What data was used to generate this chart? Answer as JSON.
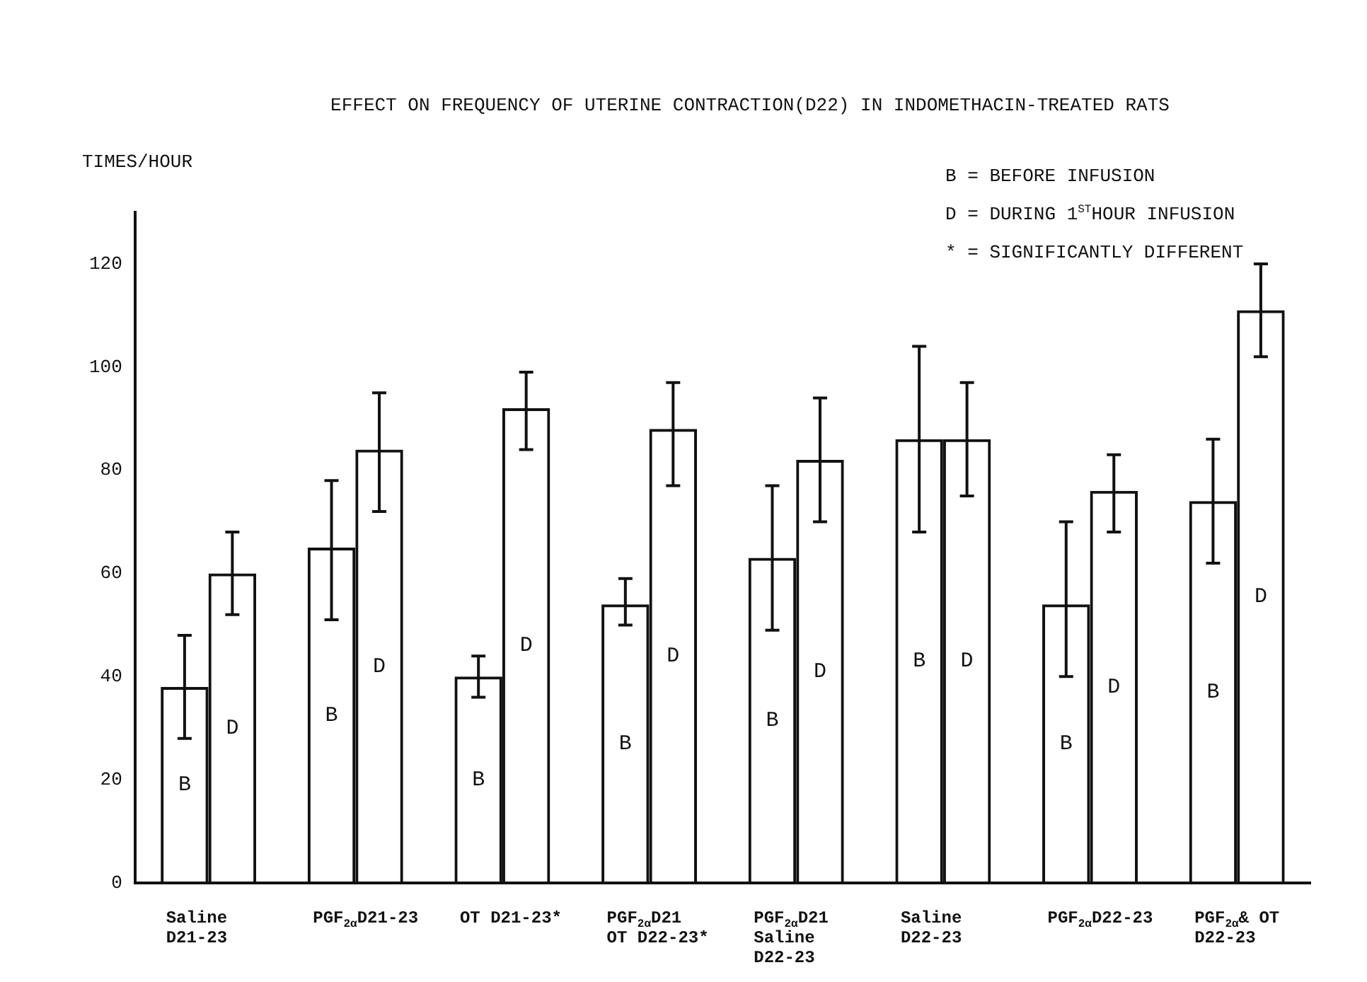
{
  "chart_data": {
    "type": "bar",
    "title": "EFFECT ON FREQUENCY OF UTERINE CONTRACTION(D22) IN INDOMETHACIN-TREATED RATS",
    "ylabel": "TIMES/HOUR",
    "categories": [
      "Saline\nD21-23",
      "PGF$_{2α}$D21-23",
      "OT D21-23*",
      "PGF$_{2α}$D21\nOT D22-23*",
      "PGF$_{2α}$D21\nSaline\nD22-23",
      "Saline\nD22-23",
      "PGF$_{2α}$D22-23",
      "PGF$_{2α}$& OT\nD22-23"
    ],
    "series": [
      {
        "name": "B",
        "color": "#111111",
        "values": [
          38,
          65,
          40,
          54,
          63,
          86,
          54,
          74
        ],
        "errors": [
          [
            28,
            48
          ],
          [
            51,
            78
          ],
          [
            36,
            44
          ],
          [
            50,
            59
          ],
          [
            49,
            77
          ],
          [
            68,
            104
          ],
          [
            40,
            70
          ],
          [
            62,
            86
          ]
        ]
      },
      {
        "name": "D",
        "color": "#111111",
        "values": [
          60,
          84,
          92,
          88,
          82,
          86,
          76,
          111
        ],
        "errors": [
          [
            52,
            68
          ],
          [
            72,
            95
          ],
          [
            84,
            99
          ],
          [
            77,
            97
          ],
          [
            70,
            94
          ],
          [
            75,
            97
          ],
          [
            68,
            83
          ],
          [
            102,
            120
          ]
        ]
      }
    ],
    "ylim": [
      0,
      130
    ],
    "yticks": [
      0,
      20,
      40,
      60,
      80,
      100,
      120
    ],
    "grid": false,
    "legend": false,
    "annotations": [
      "B = BEFORE INFUSION",
      "D = DURING 1$^{ST}$HOUR INFUSION",
      "* = SIGNIFICANTLY DIFFERENT"
    ]
  }
}
